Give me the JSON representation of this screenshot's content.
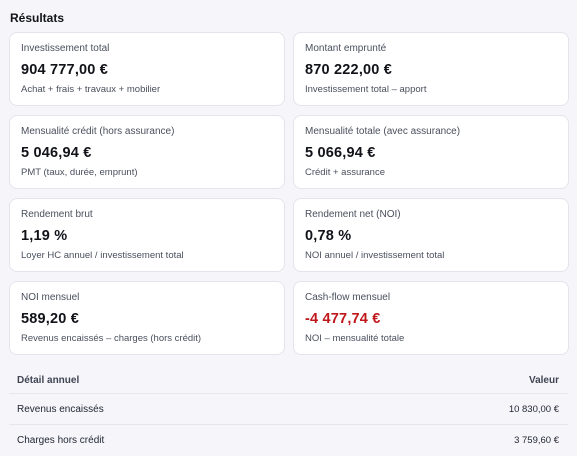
{
  "section": {
    "title": "Résultats"
  },
  "cards": [
    {
      "label": "Investissement total",
      "value": "904 777,00 €",
      "hint": "Achat + frais + travaux + mobilier"
    },
    {
      "label": "Montant emprunté",
      "value": "870 222,00 €",
      "hint": "Investissement total – apport"
    },
    {
      "label": "Mensualité crédit (hors assurance)",
      "value": "5 046,94 €",
      "hint": "PMT (taux, durée, emprunt)"
    },
    {
      "label": "Mensualité totale (avec assurance)",
      "value": "5 066,94 €",
      "hint": "Crédit + assurance"
    },
    {
      "label": "Rendement brut",
      "value": "1,19 %",
      "hint": "Loyer HC annuel / investissement total"
    },
    {
      "label": "Rendement net (NOI)",
      "value": "0,78 %",
      "hint": "NOI annuel / investissement total"
    },
    {
      "label": "NOI mensuel",
      "value": "589,20 €",
      "hint": "Revenus encaissés – charges (hors crédit)"
    },
    {
      "label": "Cash-flow mensuel",
      "value": "-4 477,74 €",
      "hint": "NOI – mensualité totale"
    }
  ],
  "colors": {
    "negative": "#c0171c",
    "card_border": "#e3e4ec",
    "background": "#f6f6fa"
  },
  "table": {
    "headers": {
      "label": "Détail annuel",
      "value": "Valeur"
    },
    "rows": [
      {
        "label": "Revenus encaissés",
        "value": "10 830,00 €"
      },
      {
        "label": "Charges hors crédit",
        "value": "3 759,60 €"
      }
    ]
  }
}
